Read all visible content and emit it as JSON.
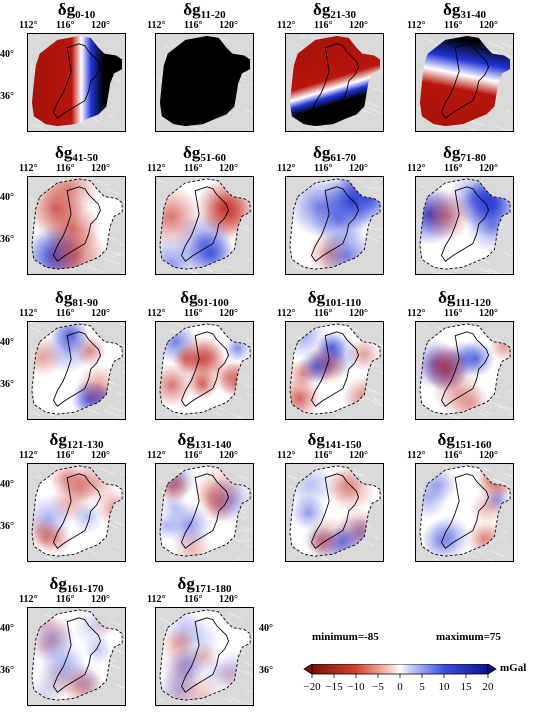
{
  "panels": [
    {
      "symbol": "δg",
      "sub": "0-10",
      "type": "red-dominant"
    },
    {
      "symbol": "δg",
      "sub": "11-20",
      "type": "black"
    },
    {
      "symbol": "δg",
      "sub": "21-30",
      "type": "red-band"
    },
    {
      "symbol": "δg",
      "sub": "31-40",
      "type": "red-blue"
    },
    {
      "symbol": "δg",
      "sub": "41-50",
      "type": "mixed-strong"
    },
    {
      "symbol": "δg",
      "sub": "51-60",
      "type": "mixed-strong"
    },
    {
      "symbol": "δg",
      "sub": "61-70",
      "type": "mixed-strong"
    },
    {
      "symbol": "δg",
      "sub": "71-80",
      "type": "mixed-strong"
    },
    {
      "symbol": "δg",
      "sub": "81-90",
      "type": "mixed-medium"
    },
    {
      "symbol": "δg",
      "sub": "91-100",
      "type": "mixed-medium"
    },
    {
      "symbol": "δg",
      "sub": "101-110",
      "type": "mixed-medium"
    },
    {
      "symbol": "δg",
      "sub": "111-120",
      "type": "mixed-medium"
    },
    {
      "symbol": "δg",
      "sub": "121-130",
      "type": "mixed-weak"
    },
    {
      "symbol": "δg",
      "sub": "131-140",
      "type": "mixed-weak"
    },
    {
      "symbol": "δg",
      "sub": "141-150",
      "type": "mixed-weak"
    },
    {
      "symbol": "δg",
      "sub": "151-160",
      "type": "mixed-weak"
    },
    {
      "symbol": "δg",
      "sub": "161-170",
      "type": "mixed-faint"
    },
    {
      "symbol": "δg",
      "sub": "171-180",
      "type": "mixed-faint"
    }
  ],
  "axes": {
    "x_ticks": [
      "112°",
      "116°",
      "120°"
    ],
    "y_ticks": [
      "40°",
      "36°"
    ]
  },
  "stats": {
    "minimum": "minimum=-85",
    "maximum": "maximum=75"
  },
  "colorbar": {
    "ticks": [
      "−20",
      "−15",
      "−10",
      "−5",
      "0",
      "5",
      "10",
      "15",
      "20"
    ],
    "unit": "mGal",
    "colors": {
      "neg": "#9b1c0c",
      "mid": "#ffffff",
      "pos": "#1418b8"
    }
  }
}
